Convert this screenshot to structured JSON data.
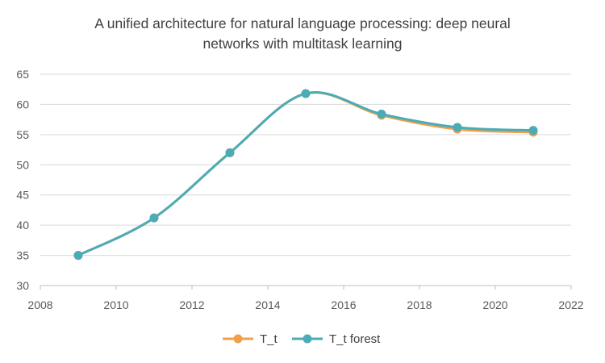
{
  "chart_data": {
    "type": "line",
    "title_line1": "A unified architecture for natural language processing: deep neural",
    "title_line2": "networks with multitask learning",
    "xlabel": "",
    "ylabel": "",
    "xlim": [
      2008,
      2022
    ],
    "ylim": [
      30,
      65
    ],
    "x_ticks": [
      2008,
      2010,
      2012,
      2014,
      2016,
      2018,
      2020,
      2022
    ],
    "y_ticks": [
      30,
      35,
      40,
      45,
      50,
      55,
      60,
      65
    ],
    "grid": "horizontal",
    "legend_position": "bottom",
    "smooth": true,
    "x": [
      2009,
      2011,
      2013,
      2015,
      2017,
      2019,
      2021
    ],
    "series": [
      {
        "name": "T_t",
        "color": "#F0A04B",
        "values": [
          35.0,
          41.2,
          52.0,
          61.8,
          58.2,
          55.9,
          55.4
        ]
      },
      {
        "name": "T_t forest",
        "color": "#4BACB6",
        "values": [
          35.0,
          41.2,
          52.0,
          61.8,
          58.4,
          56.2,
          55.7
        ]
      }
    ]
  }
}
